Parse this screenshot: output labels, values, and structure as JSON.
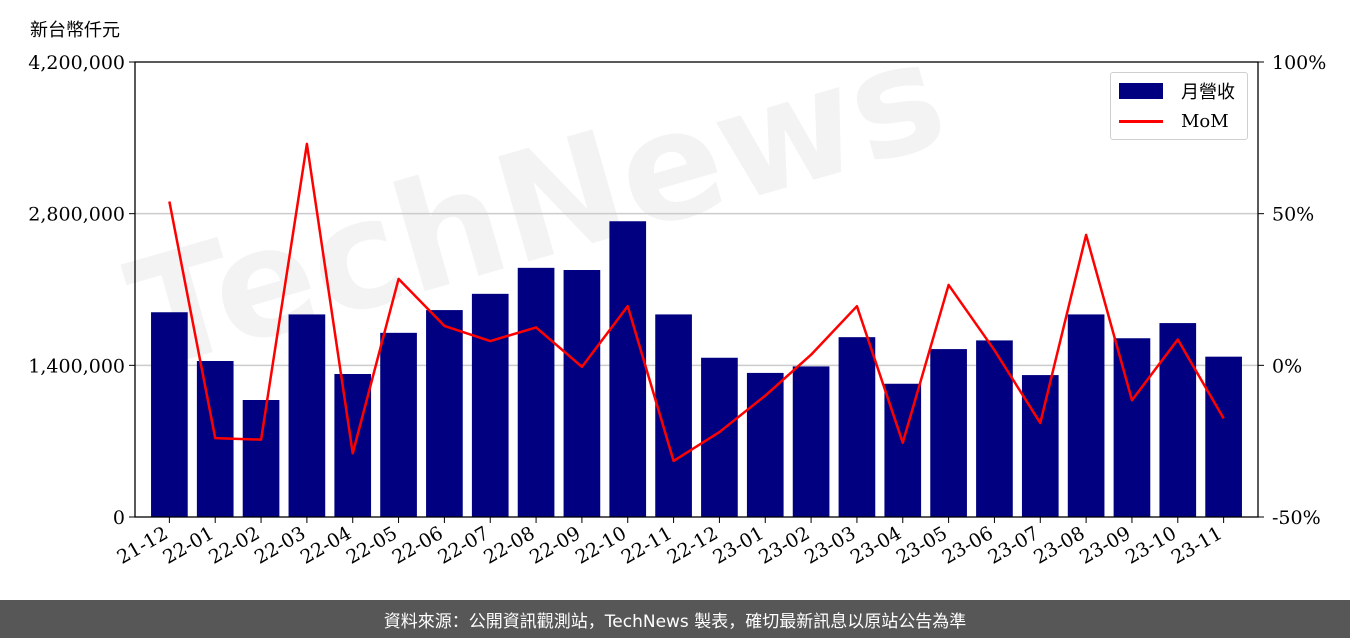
{
  "unit_label": "新台幣仟元",
  "footer_text": "資料來源：公開資訊觀測站，TechNews 製表，確切最新訊息以原站公告為準",
  "watermark_text": "TechNews",
  "colors": {
    "bar": "#000080",
    "line": "#ff0000",
    "grid": "#cccccc",
    "footer_bg": "#575757"
  },
  "chart_data": {
    "type": "bar",
    "categories": [
      "21-12",
      "22-01",
      "22-02",
      "22-03",
      "22-04",
      "22-05",
      "22-06",
      "22-07",
      "22-08",
      "22-09",
      "22-10",
      "22-11",
      "22-12",
      "23-01",
      "23-02",
      "23-03",
      "23-04",
      "23-05",
      "23-06",
      "23-07",
      "23-08",
      "23-09",
      "23-10",
      "23-11"
    ],
    "series": [
      {
        "name": "月營收",
        "type": "bar",
        "axis": "left",
        "values": [
          1890000,
          1440000,
          1080000,
          1870000,
          1320000,
          1700000,
          1910000,
          2060000,
          2300000,
          2280000,
          2730000,
          1870000,
          1470000,
          1330000,
          1390000,
          1660000,
          1230000,
          1550000,
          1630000,
          1310000,
          1870000,
          1650000,
          1790000,
          1480000
        ]
      },
      {
        "name": "MoM",
        "type": "line",
        "axis": "right",
        "values": [
          54,
          -24,
          -24.5,
          73,
          -29,
          28.5,
          13,
          8,
          12.5,
          -0.5,
          19.5,
          -31.5,
          -22,
          -10,
          3.5,
          19.5,
          -25.5,
          26.5,
          5,
          -19,
          43,
          -11.5,
          8.5,
          -17.5
        ]
      }
    ],
    "y_left": {
      "ticks": [
        "0",
        "1,400,000",
        "2,800,000",
        "4,200,000"
      ],
      "ylim": [
        0,
        4200000
      ]
    },
    "y_right": {
      "ticks": [
        "-50%",
        "0%",
        "50%",
        "100%"
      ],
      "ylim": [
        -50,
        100
      ]
    },
    "grid": "horizontal",
    "legend_position": "top-right"
  }
}
